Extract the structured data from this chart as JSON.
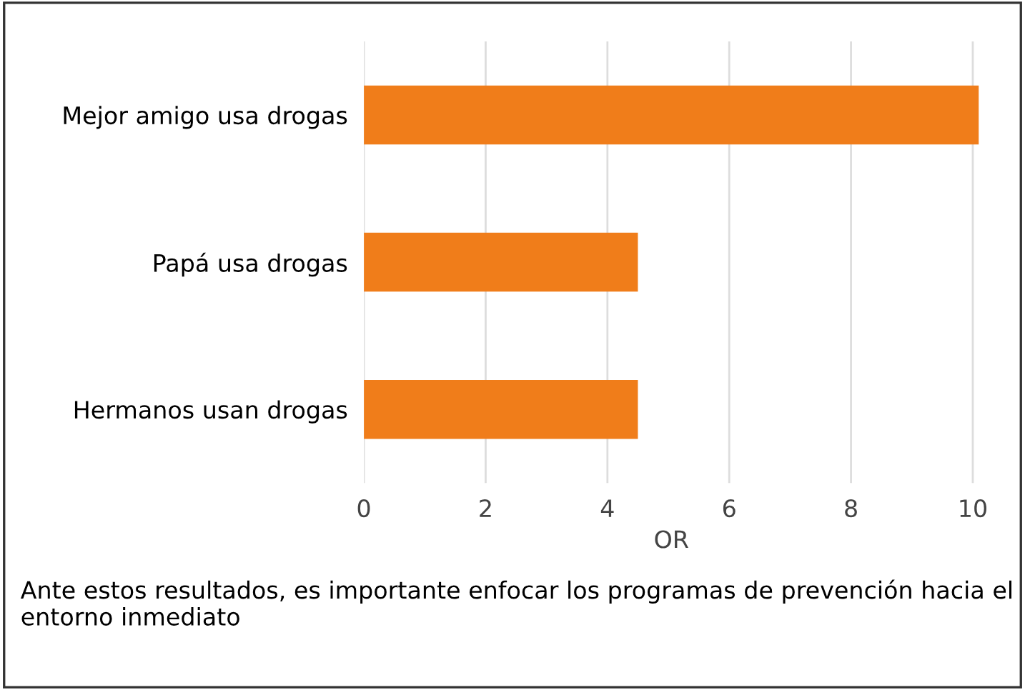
{
  "chart_data": {
    "type": "bar",
    "orientation": "horizontal",
    "categories": [
      "Mejor amigo usa drogas",
      "Papá usa drogas",
      "Hermanos usan drogas"
    ],
    "values": [
      10.1,
      4.5,
      4.5
    ],
    "color": "#f07d1a",
    "xlabel": "OR",
    "xlim": [
      0,
      10.1
    ],
    "xticks": [
      0,
      2,
      4,
      6,
      8,
      10
    ],
    "grid": "x",
    "legend": false,
    "annotations": [
      "Ante estos resultados, es importante enfocar los programas de prevención hacia el entorno inmediato"
    ]
  }
}
